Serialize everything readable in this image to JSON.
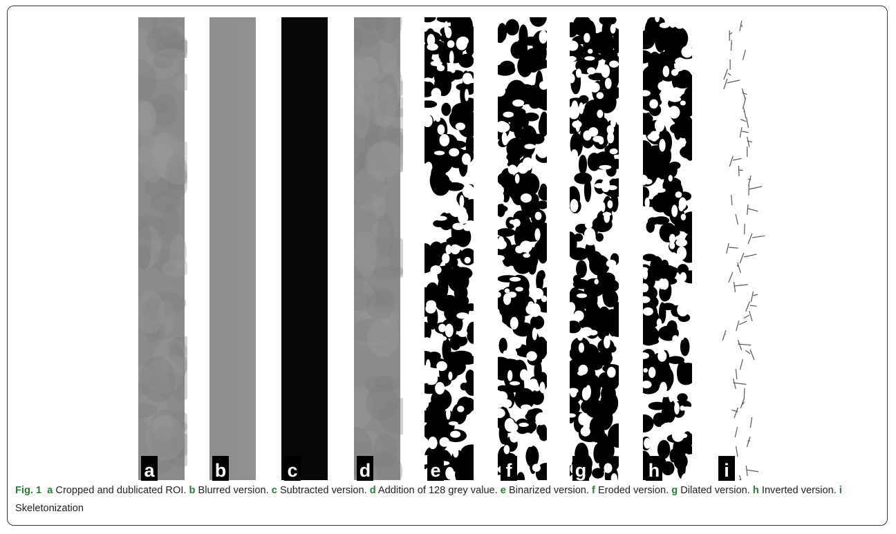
{
  "figure": {
    "panels": [
      {
        "label": "a",
        "kind": "grey"
      },
      {
        "label": "b",
        "kind": "blur"
      },
      {
        "label": "c",
        "kind": "dark"
      },
      {
        "label": "d",
        "kind": "grey"
      },
      {
        "label": "e",
        "kind": "binary"
      },
      {
        "label": "f",
        "kind": "binary"
      },
      {
        "label": "g",
        "kind": "binary"
      },
      {
        "label": "h",
        "kind": "binary"
      },
      {
        "label": "i",
        "kind": "skeleton"
      }
    ]
  },
  "caption": {
    "label": "Fig. 1",
    "items": [
      {
        "letter": "a",
        "text": "Cropped and dublicated ROI."
      },
      {
        "letter": "b",
        "text": "Blurred version."
      },
      {
        "letter": "c",
        "text": "Subtracted version."
      },
      {
        "letter": "d",
        "text": "Addition of 128 grey value."
      },
      {
        "letter": "e",
        "text": "Binarized version."
      },
      {
        "letter": "f",
        "text": "Eroded version."
      },
      {
        "letter": "g",
        "text": "Dilated version."
      },
      {
        "letter": "h",
        "text": "Inverted version."
      },
      {
        "letter": "i",
        "text": "Skeletonization"
      }
    ]
  }
}
